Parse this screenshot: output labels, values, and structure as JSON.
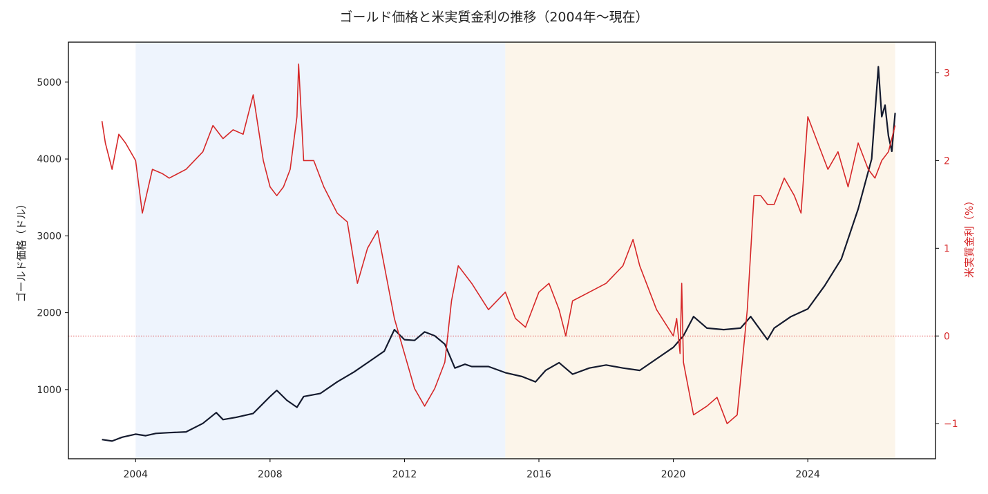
{
  "chart_data": {
    "type": "line",
    "title": "ゴールド価格と米実質金利の推移（2004年～現在）",
    "xlabel": "",
    "ylabel": "ゴールド価格（ドル）",
    "y2label": "米実質金利（%）",
    "xlim": [
      2002.0,
      2027.8
    ],
    "ylim": [
      100,
      5520
    ],
    "y2lim": [
      -1.4,
      3.35
    ],
    "x_ticks": [
      2004,
      2008,
      2012,
      2016,
      2020,
      2024
    ],
    "y_ticks": [
      1000,
      2000,
      3000,
      4000,
      5000
    ],
    "y2_ticks": [
      -1,
      0,
      1,
      2,
      3
    ],
    "grid": false,
    "legend": "none",
    "shaded_regions": [
      {
        "x_start": 2004.0,
        "x_end": 2015.0,
        "color": "#eef4fd"
      },
      {
        "x_start": 2015.0,
        "x_end": 2026.6,
        "color": "#fcf5ea"
      }
    ],
    "reference_lines": [
      {
        "axis": "y2",
        "value": 0,
        "style": "dotted",
        "color": "#d62728"
      }
    ],
    "series": [
      {
        "axis": "y",
        "color": "#141a2e",
        "x": [
          2003.0,
          2003.3,
          2003.6,
          2004.0,
          2004.3,
          2004.6,
          2005.0,
          2005.5,
          2006.0,
          2006.4,
          2006.6,
          2007.0,
          2007.5,
          2008.0,
          2008.2,
          2008.5,
          2008.8,
          2009.0,
          2009.5,
          2010.0,
          2010.5,
          2011.0,
          2011.4,
          2011.7,
          2012.0,
          2012.3,
          2012.6,
          2012.9,
          2013.2,
          2013.5,
          2013.8,
          2014.0,
          2014.5,
          2015.0,
          2015.5,
          2015.9,
          2016.2,
          2016.6,
          2017.0,
          2017.5,
          2018.0,
          2018.5,
          2019.0,
          2019.5,
          2020.0,
          2020.3,
          2020.6,
          2021.0,
          2021.5,
          2022.0,
          2022.3,
          2022.8,
          2023.0,
          2023.5,
          2024.0,
          2024.5,
          2025.0,
          2025.5,
          2025.9,
          2026.1,
          2026.2,
          2026.3,
          2026.4,
          2026.5,
          2026.6
        ],
        "y": [
          350,
          330,
          380,
          420,
          400,
          430,
          440,
          450,
          560,
          700,
          610,
          640,
          690,
          910,
          990,
          860,
          770,
          910,
          950,
          1100,
          1230,
          1380,
          1500,
          1780,
          1650,
          1640,
          1750,
          1700,
          1590,
          1280,
          1330,
          1300,
          1300,
          1220,
          1170,
          1100,
          1250,
          1350,
          1200,
          1280,
          1320,
          1280,
          1250,
          1400,
          1550,
          1700,
          1950,
          1800,
          1780,
          1800,
          1950,
          1650,
          1800,
          1950,
          2050,
          2350,
          2700,
          3350,
          4000,
          5200,
          4550,
          4700,
          4300,
          4100,
          4600
        ]
      },
      {
        "axis": "y2",
        "color": "#d62728",
        "x": [
          2003.0,
          2003.1,
          2003.3,
          2003.5,
          2003.7,
          2004.0,
          2004.2,
          2004.5,
          2004.8,
          2005.0,
          2005.5,
          2006.0,
          2006.3,
          2006.6,
          2006.9,
          2007.2,
          2007.5,
          2007.8,
          2008.0,
          2008.2,
          2008.4,
          2008.6,
          2008.8,
          2008.85,
          2009.0,
          2009.3,
          2009.6,
          2010.0,
          2010.3,
          2010.6,
          2010.9,
          2011.2,
          2011.5,
          2011.7,
          2012.0,
          2012.3,
          2012.6,
          2012.9,
          2013.2,
          2013.4,
          2013.6,
          2014.0,
          2014.5,
          2015.0,
          2015.3,
          2015.6,
          2016.0,
          2016.3,
          2016.6,
          2016.8,
          2017.0,
          2017.5,
          2018.0,
          2018.5,
          2018.8,
          2019.0,
          2019.5,
          2020.0,
          2020.1,
          2020.2,
          2020.25,
          2020.3,
          2020.4,
          2020.6,
          2021.0,
          2021.3,
          2021.6,
          2021.9,
          2022.0,
          2022.2,
          2022.4,
          2022.6,
          2022.8,
          2023.0,
          2023.3,
          2023.6,
          2023.8,
          2024.0,
          2024.3,
          2024.6,
          2024.9,
          2025.2,
          2025.5,
          2025.8,
          2026.0,
          2026.2,
          2026.4,
          2026.6
        ],
        "y": [
          2.45,
          2.2,
          1.9,
          2.3,
          2.2,
          2.0,
          1.4,
          1.9,
          1.85,
          1.8,
          1.9,
          2.1,
          2.4,
          2.25,
          2.35,
          2.3,
          2.75,
          2.0,
          1.7,
          1.6,
          1.7,
          1.9,
          2.5,
          3.1,
          2.0,
          2.0,
          1.7,
          1.4,
          1.3,
          0.6,
          1.0,
          1.2,
          0.6,
          0.2,
          -0.2,
          -0.6,
          -0.8,
          -0.6,
          -0.3,
          0.4,
          0.8,
          0.6,
          0.3,
          0.5,
          0.2,
          0.1,
          0.5,
          0.6,
          0.3,
          0.0,
          0.4,
          0.5,
          0.6,
          0.8,
          1.1,
          0.8,
          0.3,
          0.0,
          0.2,
          -0.2,
          0.6,
          -0.3,
          -0.5,
          -0.9,
          -0.8,
          -0.7,
          -1.0,
          -0.9,
          -0.5,
          0.3,
          1.6,
          1.6,
          1.5,
          1.5,
          1.8,
          1.6,
          1.4,
          2.5,
          2.2,
          1.9,
          2.1,
          1.7,
          2.2,
          1.9,
          1.8,
          2.0,
          2.1,
          2.4
        ]
      }
    ]
  }
}
